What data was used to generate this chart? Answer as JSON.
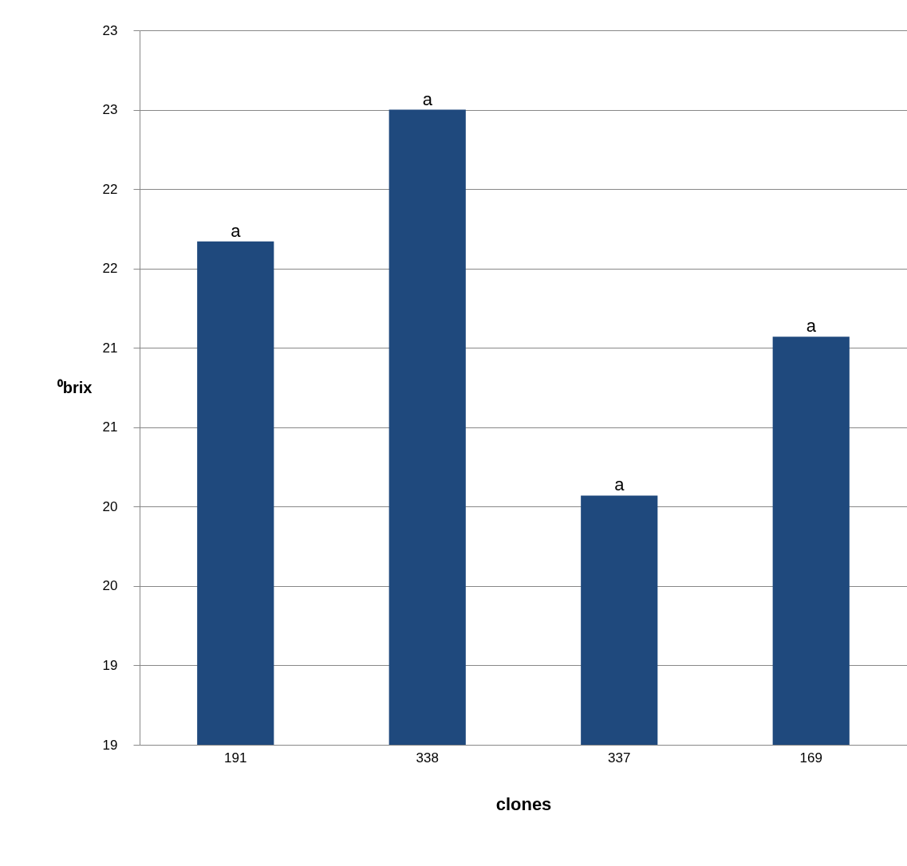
{
  "chart_data": {
    "type": "bar",
    "xlabel": "clones",
    "ylabel": "⁰brix",
    "categories": [
      "191",
      "338",
      "337",
      "169"
    ],
    "values": [
      21.67,
      22.5,
      20.07,
      21.07
    ],
    "color": "#1f497d",
    "ylim": [
      18.5,
      23.0
    ],
    "yticks": [
      {
        "value": 18.5,
        "label": "19"
      },
      {
        "value": 19.0,
        "label": "19"
      },
      {
        "value": 19.5,
        "label": "20"
      },
      {
        "value": 20.0,
        "label": "20"
      },
      {
        "value": 20.5,
        "label": "21"
      },
      {
        "value": 21.0,
        "label": "21"
      },
      {
        "value": 21.5,
        "label": "22"
      },
      {
        "value": 22.0,
        "label": "22"
      },
      {
        "value": 22.5,
        "label": "23"
      },
      {
        "value": 23.0,
        "label": "23"
      }
    ],
    "grid": "y",
    "annotations": [
      {
        "text": "a",
        "x": "191",
        "y": 21.67
      },
      {
        "text": "a",
        "x": "338",
        "y": 22.5
      },
      {
        "text": "a",
        "x": "337",
        "y": 20.07
      },
      {
        "text": "a",
        "x": "169",
        "y": 21.07
      }
    ]
  }
}
